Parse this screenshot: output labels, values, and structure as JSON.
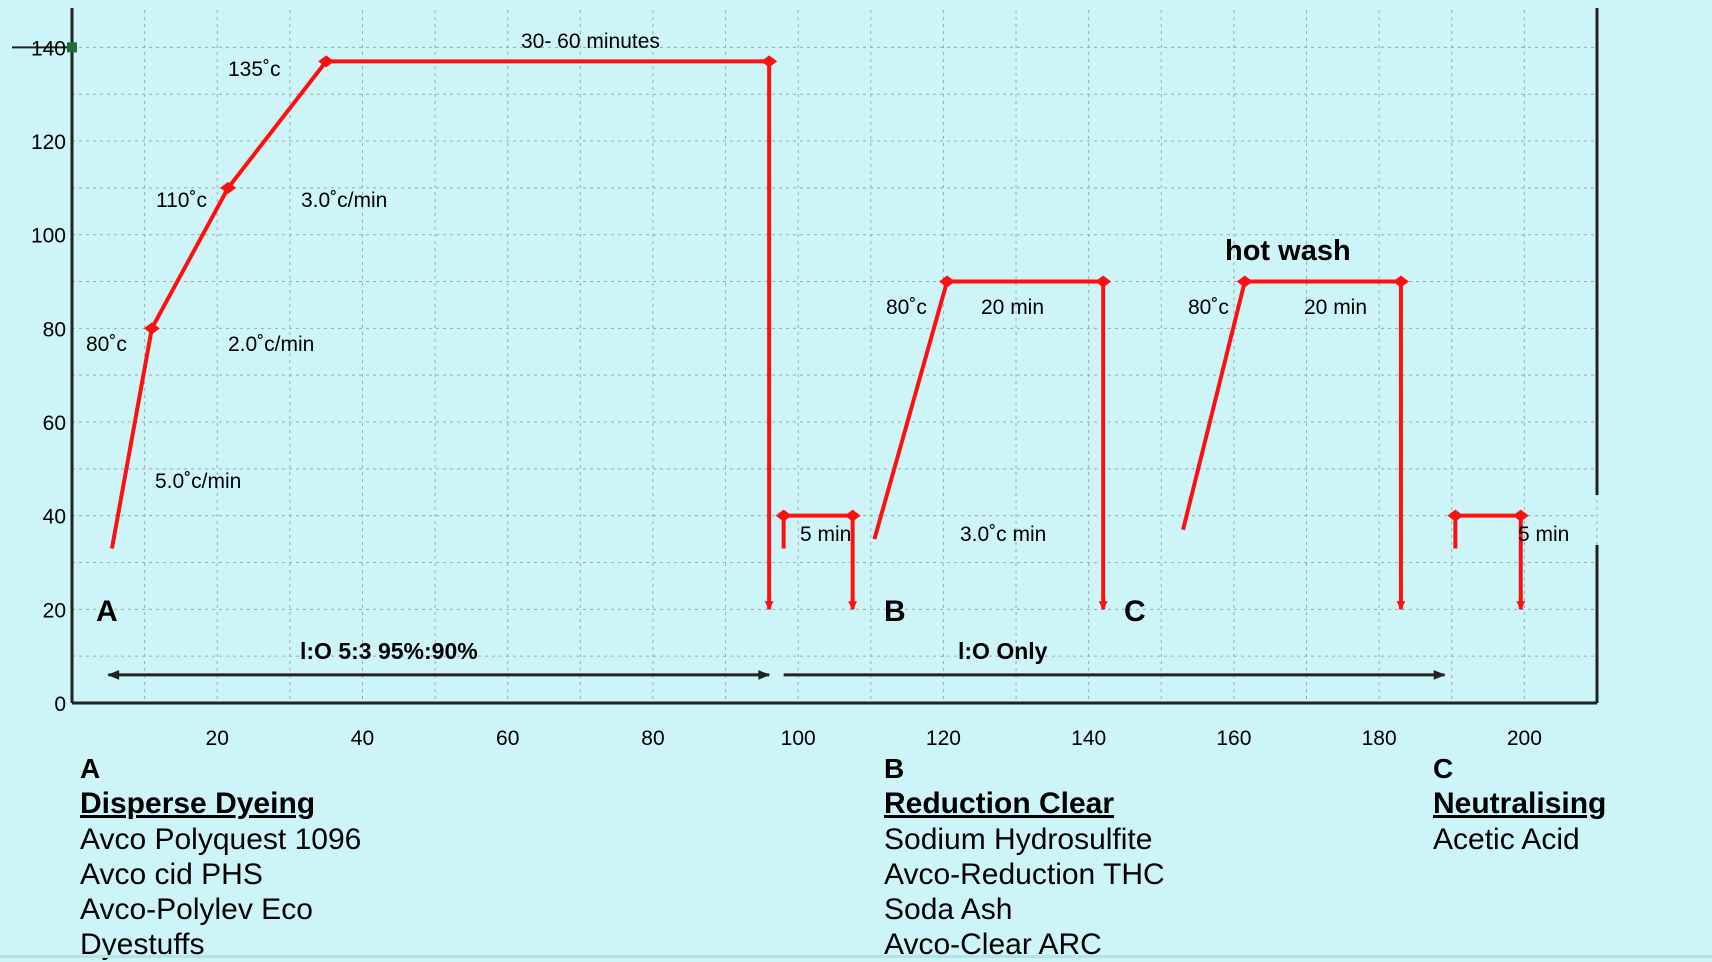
{
  "colors": {
    "background": "#cdf5f7",
    "grid": "#9aa9aa",
    "profile": "#ff1010",
    "axis": "#222222",
    "text": "#000000"
  },
  "chart_data": {
    "type": "line",
    "xlim": [
      0,
      210
    ],
    "ylim": [
      0,
      142
    ],
    "x_ticks": [
      20,
      40,
      60,
      80,
      100,
      120,
      140,
      160,
      180,
      200
    ],
    "y_ticks": [
      0,
      20,
      40,
      60,
      80,
      100,
      120,
      140
    ],
    "grid": true,
    "series": [
      {
        "x": [
          5.5,
          11,
          21.5,
          35,
          96,
          96
        ],
        "y": [
          33,
          80,
          110,
          137,
          137,
          20
        ],
        "end_marker": true
      },
      {
        "x": [
          98,
          98,
          107.5,
          107.5
        ],
        "y": [
          33,
          40,
          40,
          20
        ],
        "end_marker": true
      },
      {
        "x": [
          110.5,
          120.5,
          142,
          142
        ],
        "y": [
          35,
          90,
          90,
          20
        ],
        "end_marker": true
      },
      {
        "x": [
          153,
          161.5,
          183,
          183
        ],
        "y": [
          37,
          90,
          90,
          20
        ],
        "end_marker": true
      },
      {
        "x": [
          190.5,
          190.5,
          199.5,
          199.5
        ],
        "y": [
          33,
          40,
          40,
          20
        ],
        "end_marker": true
      }
    ],
    "double_arrow": {
      "x": [
        5,
        96
      ],
      "y": 6
    },
    "single_arrow": {
      "x": [
        98,
        189
      ],
      "y": 6
    },
    "annotations": {
      "t_135": "135˚c",
      "t_110": "110˚c",
      "t_80": "80˚c",
      "rate_5": "5.0˚c/min",
      "rate_2": "2.0˚c/min",
      "rate_3": "3.0˚c/min",
      "hold_time": "30- 60 minutes",
      "rinse_1": "5 min",
      "b_temp": "80˚c",
      "b_time": "20 min",
      "b_rate": "3.0˚c min",
      "hot_wash": "hot wash",
      "c_temp": "80˚c",
      "c_time": "20 min",
      "rinse_2": "5 min",
      "ratio": "l:O 5:3  95%:90%",
      "lo_only": "l:O Only",
      "stage_a": "A",
      "stage_b": "B",
      "stage_c": "C"
    }
  },
  "legend": [
    {
      "letter": "A",
      "heading": "Disperse Dyeing",
      "items": [
        "Avco Polyquest  1096",
        "Avco cid PHS",
        "Avco-Polylev Eco",
        "Dyestuffs"
      ]
    },
    {
      "letter": "B",
      "heading": "Reduction Clear",
      "items": [
        "Sodium Hydrosulfite",
        "Avco-Reduction THC",
        "Soda Ash",
        "Avco-Clear ARC"
      ]
    },
    {
      "letter": "C",
      "heading": "Neutralising",
      "items": [
        "Acetic Acid"
      ]
    }
  ]
}
